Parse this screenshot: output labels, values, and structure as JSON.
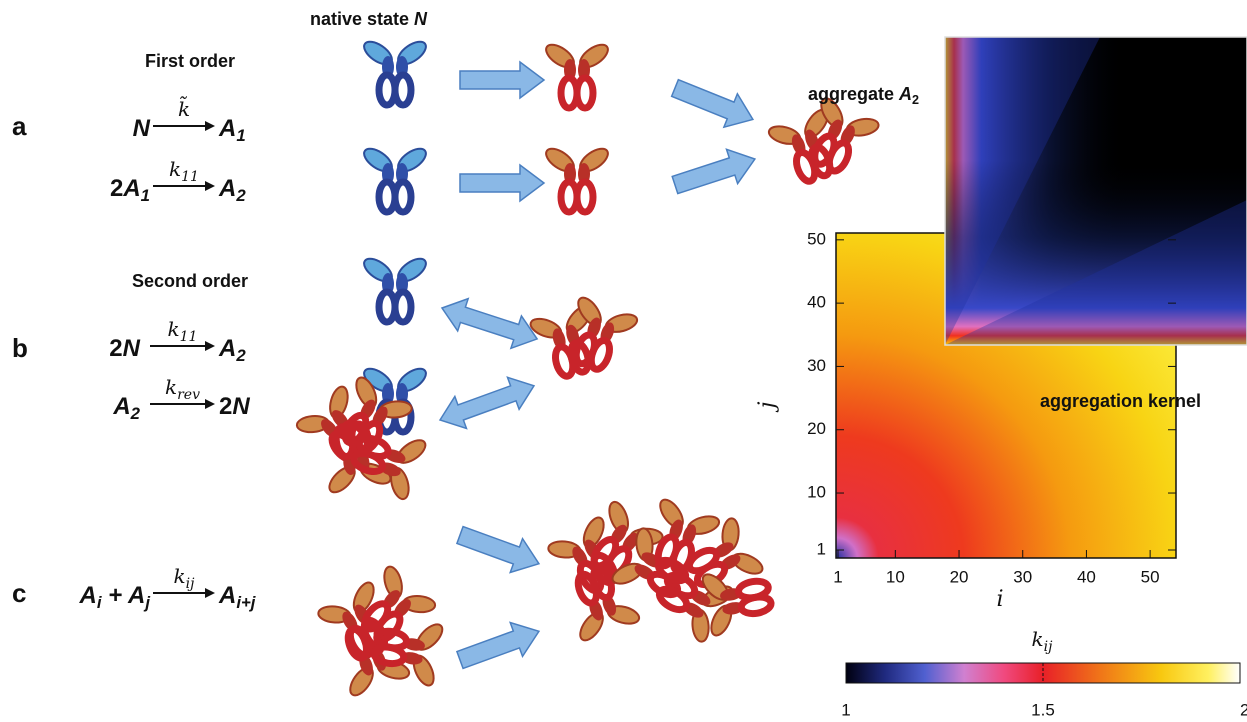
{
  "figure": {
    "native_label": {
      "text": "native state ",
      "symbol": "N"
    },
    "aggregate_label": {
      "text": "aggregate ",
      "symbol": "A",
      "sub": "2"
    },
    "panels": [
      {
        "label": "a",
        "title": "First order",
        "reactions": [
          {
            "lhs": [
              {
                "text": "N"
              }
            ],
            "rate": [
              {
                "text": "k̃"
              }
            ],
            "rhs": [
              {
                "text": "A"
              },
              {
                "sub": "1"
              }
            ]
          },
          {
            "lhs": [
              {
                "text": "2"
              },
              {
                "text": "A"
              },
              {
                "sub": "1"
              }
            ],
            "rate": [
              {
                "text": "k"
              },
              {
                "sub": "11"
              }
            ],
            "rhs": [
              {
                "text": "A"
              },
              {
                "sub": "2"
              }
            ]
          }
        ]
      },
      {
        "label": "b",
        "title": "Second order",
        "reactions": [
          {
            "lhs": [
              {
                "text": "2"
              },
              {
                "text": "N"
              }
            ],
            "rate": [
              {
                "text": "k"
              },
              {
                "sub": "11"
              }
            ],
            "rhs": [
              {
                "text": "A"
              },
              {
                "sub": "2"
              }
            ]
          },
          {
            "lhs": [
              {
                "text": "A"
              },
              {
                "sub": "2"
              }
            ],
            "rate": [
              {
                "text": "k"
              },
              {
                "sub": "rev"
              }
            ],
            "rhs": [
              {
                "text": "2"
              },
              {
                "text": "N"
              }
            ]
          }
        ]
      },
      {
        "label": "c",
        "title": null,
        "reactions": [
          {
            "lhs": [
              {
                "text": "A"
              },
              {
                "sub": "i"
              },
              {
                "text": " + "
              },
              {
                "text": "A"
              },
              {
                "sub": "j"
              }
            ],
            "rate": [
              {
                "text": "k"
              },
              {
                "sub": "ij"
              }
            ],
            "rhs": [
              {
                "text": "A"
              },
              {
                "sub": "i+j"
              }
            ]
          }
        ]
      }
    ],
    "kernel_plot": {
      "label": "aggregation kernel",
      "xlabel": "i",
      "ylabel": "j",
      "xticks": [
        1,
        10,
        20,
        30,
        40,
        50
      ],
      "yticks": [
        1,
        10,
        20,
        30,
        40,
        50
      ]
    },
    "colorbar": {
      "label": "k",
      "label_sub": "ij",
      "ticks": [
        1,
        1.5,
        2
      ]
    }
  }
}
